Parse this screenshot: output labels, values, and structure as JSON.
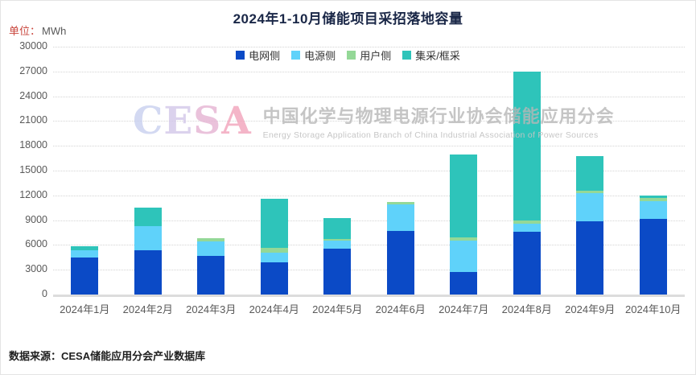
{
  "header": {
    "unit_label": "单位：",
    "unit_value": "MWh",
    "title": "2024年1-10月储能项目采招落地容量"
  },
  "watermark": {
    "logo": "CESA",
    "logo_colors": [
      "#c9d0ef",
      "#d3c7e9",
      "#e5b4d3",
      "#f2a3bb"
    ],
    "cn": "中国化学与物理电源行业协会储能应用分会",
    "en": "Energy Storage Application Branch of China Industrial Association of Power Sources"
  },
  "footer": {
    "source": "数据来源：CESA储能应用分会产业数据库"
  },
  "chart_data": {
    "type": "bar",
    "stacked": true,
    "title": "2024年1-10月储能项目采招落地容量",
    "unit": "MWh",
    "xlabel": "",
    "ylabel": "MWh",
    "ylim": [
      0,
      30000
    ],
    "ytick_step": 3000,
    "grid": "horizontal-dotted",
    "legend_position": "top-center",
    "categories": [
      "2024年1月",
      "2024年2月",
      "2024年3月",
      "2024年4月",
      "2024年5月",
      "2024年6月",
      "2024年7月",
      "2024年8月",
      "2024年9月",
      "2024年10月"
    ],
    "series": [
      {
        "name": "电网侧",
        "color": "#0b4ac6",
        "values": [
          4500,
          5400,
          4650,
          3850,
          5600,
          7700,
          2700,
          7600,
          8900,
          9200
        ]
      },
      {
        "name": "电源侧",
        "color": "#5fd2fa",
        "values": [
          900,
          2900,
          1750,
          1250,
          900,
          3200,
          3850,
          950,
          3400,
          2100
        ]
      },
      {
        "name": "用户侧",
        "color": "#94d897",
        "values": [
          0,
          0,
          400,
          550,
          200,
          300,
          350,
          450,
          300,
          400
        ]
      },
      {
        "name": "集采/框采",
        "color": "#2ec4ba",
        "values": [
          400,
          2200,
          0,
          5900,
          2600,
          0,
          10100,
          18000,
          4200,
          300
        ]
      }
    ],
    "totals": [
      5800,
      10500,
      6800,
      11550,
      9300,
      11200,
      17000,
      27000,
      16800,
      12000
    ]
  }
}
